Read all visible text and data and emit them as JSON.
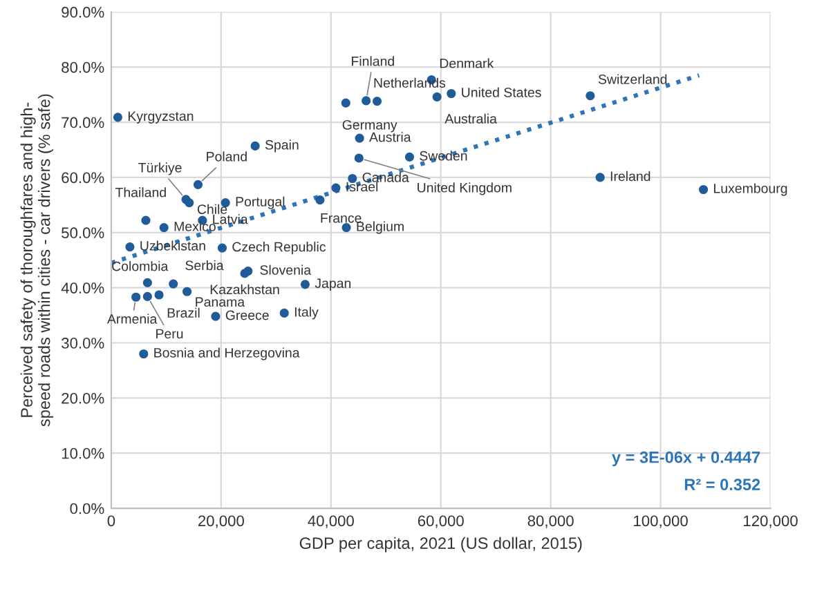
{
  "chart_data": {
    "type": "scatter",
    "xlabel": "GDP per capita, 2021 (US dollar, 2015)",
    "ylabel": "Perceived safety of thoroughfares and high-\nspeed roads within cities - car drivers (% safe)",
    "xlim": [
      0,
      120000
    ],
    "xticks": [
      {
        "value": 0,
        "label": "0"
      },
      {
        "value": 20000,
        "label": "20,000"
      },
      {
        "value": 40000,
        "label": "40,000"
      },
      {
        "value": 60000,
        "label": "60,000"
      },
      {
        "value": 80000,
        "label": "80,000"
      },
      {
        "value": 100000,
        "label": "100,000"
      },
      {
        "value": 120000,
        "label": "120,000"
      }
    ],
    "ylim": [
      0,
      90
    ],
    "yticks": [
      {
        "value": 0,
        "label": "0.0%"
      },
      {
        "value": 10,
        "label": "10.0%"
      },
      {
        "value": 20,
        "label": "20.0%"
      },
      {
        "value": 30,
        "label": "30.0%"
      },
      {
        "value": 40,
        "label": "40.0%"
      },
      {
        "value": 50,
        "label": "50.0%"
      },
      {
        "value": 60,
        "label": "60.0%"
      },
      {
        "value": 70,
        "label": "70.0%"
      },
      {
        "value": 80,
        "label": "80.0%"
      },
      {
        "value": 90,
        "label": "90.0%"
      }
    ],
    "grid": true,
    "legend": false,
    "marker": "circle",
    "series": [
      {
        "type": "scatter",
        "color": "#1f5c99",
        "x": [
          1200,
          26200,
          15800,
          13600,
          14200,
          20800,
          6300,
          9600,
          16600,
          3400,
          20200,
          6600,
          11300,
          24300,
          24900,
          35300,
          4500,
          6600,
          8700,
          13800,
          19000,
          31500,
          5900,
          42700,
          46400,
          48400,
          58300,
          59300,
          61900,
          45200,
          45100,
          54300,
          43900,
          40900,
          38000,
          42800,
          87200,
          89000,
          107800
        ],
        "values": [
          70.9,
          65.7,
          58.7,
          56.0,
          55.4,
          55.4,
          52.2,
          50.9,
          52.2,
          47.4,
          47.2,
          40.9,
          40.7,
          42.6,
          43.0,
          40.6,
          38.3,
          38.4,
          38.7,
          39.3,
          34.8,
          35.4,
          28.0,
          73.5,
          73.9,
          73.8,
          77.7,
          74.6,
          75.2,
          67.1,
          63.5,
          63.7,
          59.8,
          58.1,
          55.9,
          50.9,
          74.8,
          60.0,
          57.8
        ],
        "value_labels": [
          "Kyrgyzstan",
          "Spain",
          "Poland",
          "Türkiye",
          "Chile",
          "Portugal",
          "Thailand",
          "Mexico",
          "Latvia",
          "Uzbekistan",
          "Czech Republic",
          "Colombia",
          "Serbia",
          "Kazakhstan",
          "Slovenia",
          "Japan",
          "Armenia",
          "Peru",
          "Brazil",
          "Panama",
          "Greece",
          "Italy",
          "Bosnia and Herzegovina",
          "Germany",
          "Finland",
          "Netherlands",
          "Denmark",
          "Australia",
          "United States",
          "Austria",
          "United Kingdom",
          "Sweden",
          "Canada",
          "Israel",
          "France",
          "Belgium",
          "Switzerland",
          "Ireland",
          "Luxembourg"
        ]
      },
      {
        "type": "line",
        "color": "#2e75b6",
        "line_style": "dotted",
        "marker": "none",
        "x": [
          0,
          107000
        ],
        "values": [
          44.5,
          78.5
        ]
      }
    ],
    "annotations": [
      "y = 3E-06x + 0.4447",
      "R² = 0.352"
    ]
  }
}
